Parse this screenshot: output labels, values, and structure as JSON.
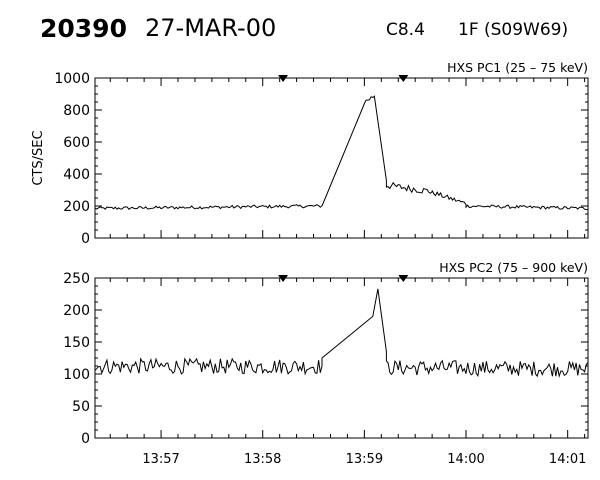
{
  "header": {
    "event_id": "20390",
    "date": "27-MAR-00",
    "goes_class": "C8.4",
    "location": "1F (S09W69)"
  },
  "chart_data": [
    {
      "type": "line",
      "title": "HXS PC1 (25 – 75 keV)",
      "ylabel": "CTS/SEC",
      "xlabel": "",
      "ylim": [
        0,
        1000
      ],
      "yticks": [
        0,
        200,
        400,
        600,
        800,
        1000
      ],
      "xlim": [
        "13:56:21",
        "14:01:12"
      ],
      "xticks": [
        "13:57",
        "13:58",
        "13:59",
        "14:00",
        "14:01"
      ],
      "markers": [
        "13:58:12",
        "13:59:23"
      ],
      "segments": [
        {
          "shape": "noisy",
          "x": [
            "13:56:21",
            "13:58:35"
          ],
          "y": [
            185,
            200
          ],
          "noise": 10
        },
        {
          "shape": "linear",
          "x": [
            "13:58:35",
            "13:59:00"
          ],
          "y": [
            200,
            840
          ]
        },
        {
          "shape": "noisy",
          "x": [
            "13:59:00",
            "13:59:06"
          ],
          "y": [
            850,
            890
          ],
          "noise": 15
        },
        {
          "shape": "linear",
          "x": [
            "13:59:06",
            "13:59:13"
          ],
          "y": [
            880,
            360
          ]
        },
        {
          "shape": "noisy",
          "x": [
            "13:59:13",
            "13:59:40"
          ],
          "y": [
            330,
            290
          ],
          "noise": 22
        },
        {
          "shape": "noisy",
          "x": [
            "13:59:40",
            "14:00:00"
          ],
          "y": [
            285,
            215
          ],
          "noise": 15
        },
        {
          "shape": "noisy",
          "x": [
            "14:00:00",
            "14:01:12"
          ],
          "y": [
            200,
            185
          ],
          "noise": 10
        }
      ]
    },
    {
      "type": "line",
      "title": "HXS PC2 (75 – 900 keV)",
      "ylabel": "",
      "xlabel": "",
      "ylim": [
        0,
        250
      ],
      "yticks": [
        0,
        50,
        100,
        150,
        200,
        250
      ],
      "xlim": [
        "13:56:21",
        "14:01:12"
      ],
      "xticks": [
        "13:57",
        "13:58",
        "13:59",
        "14:00",
        "14:01"
      ],
      "markers": [
        "13:58:12",
        "13:59:23"
      ],
      "segments": [
        {
          "shape": "noisy",
          "x": [
            "13:56:21",
            "13:58:35"
          ],
          "y": [
            112,
            112
          ],
          "noise": 12
        },
        {
          "shape": "linear",
          "x": [
            "13:58:35",
            "13:59:05"
          ],
          "y": [
            125,
            190
          ]
        },
        {
          "shape": "linear",
          "x": [
            "13:59:05",
            "13:59:08"
          ],
          "y": [
            190,
            233
          ]
        },
        {
          "shape": "linear",
          "x": [
            "13:59:08",
            "13:59:13"
          ],
          "y": [
            233,
            135
          ]
        },
        {
          "shape": "noisy",
          "x": [
            "13:59:13",
            "14:01:12"
          ],
          "y": [
            110,
            108
          ],
          "noise": 12
        }
      ]
    }
  ]
}
